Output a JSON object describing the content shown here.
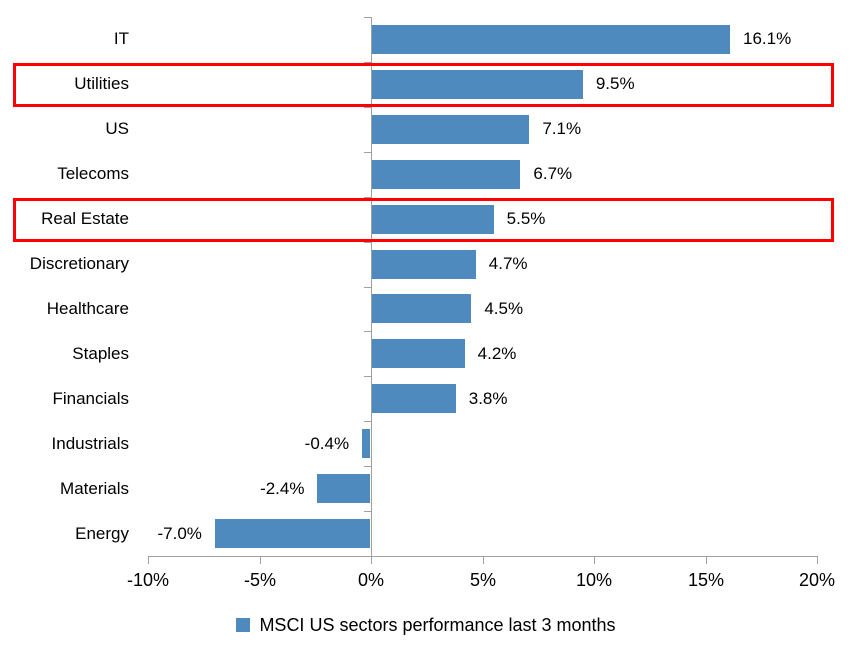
{
  "chart_data": {
    "type": "bar",
    "orientation": "horizontal",
    "title": "",
    "legend": "MSCI US sectors performance last 3 months",
    "categories": [
      "IT",
      "Utilities",
      "US",
      "Telecoms",
      "Real Estate",
      "Discretionary",
      "Healthcare",
      "Staples",
      "Financials",
      "Industrials",
      "Materials",
      "Energy"
    ],
    "values": [
      16.1,
      9.5,
      7.1,
      6.7,
      5.5,
      4.7,
      4.5,
      4.2,
      3.8,
      -0.4,
      -2.4,
      -7.0
    ],
    "value_labels": [
      "16.1%",
      "9.5%",
      "7.1%",
      "6.7%",
      "5.5%",
      "4.7%",
      "4.5%",
      "4.2%",
      "3.8%",
      "-0.4%",
      "-2.4%",
      "-7.0%"
    ],
    "highlighted_categories": [
      "Utilities",
      "Real Estate"
    ],
    "x_tick_labels": [
      "-10%",
      "-5%",
      "0%",
      "5%",
      "10%",
      "15%",
      "20%"
    ],
    "x_tick_values": [
      -10,
      -5,
      0,
      5,
      10,
      15,
      20
    ],
    "xlim": [
      -10,
      20
    ],
    "grid": false,
    "legend_position": "bottom-center",
    "colors": {
      "bar": "#4E8ABD",
      "highlight_box": "#FF0000",
      "axis": "#A0A0A0",
      "text": "#000000"
    }
  }
}
